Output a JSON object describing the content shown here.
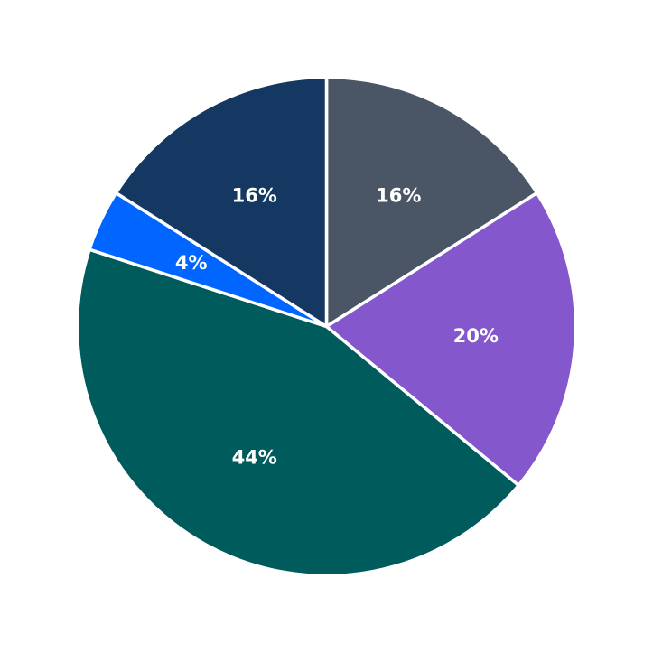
{
  "chart_data": {
    "type": "pie",
    "title": "",
    "start_angle_deg": 90,
    "direction": "clockwise",
    "slices": [
      {
        "value": 16,
        "label": "16%",
        "color": "#4a5565"
      },
      {
        "value": 20,
        "label": "20%",
        "color": "#8457cc"
      },
      {
        "value": 44,
        "label": "44%",
        "color": "#005c5c"
      },
      {
        "value": 4,
        "label": "4%",
        "color": "#0066ff"
      },
      {
        "value": 16,
        "label": "16%",
        "color": "#143862"
      }
    ]
  }
}
